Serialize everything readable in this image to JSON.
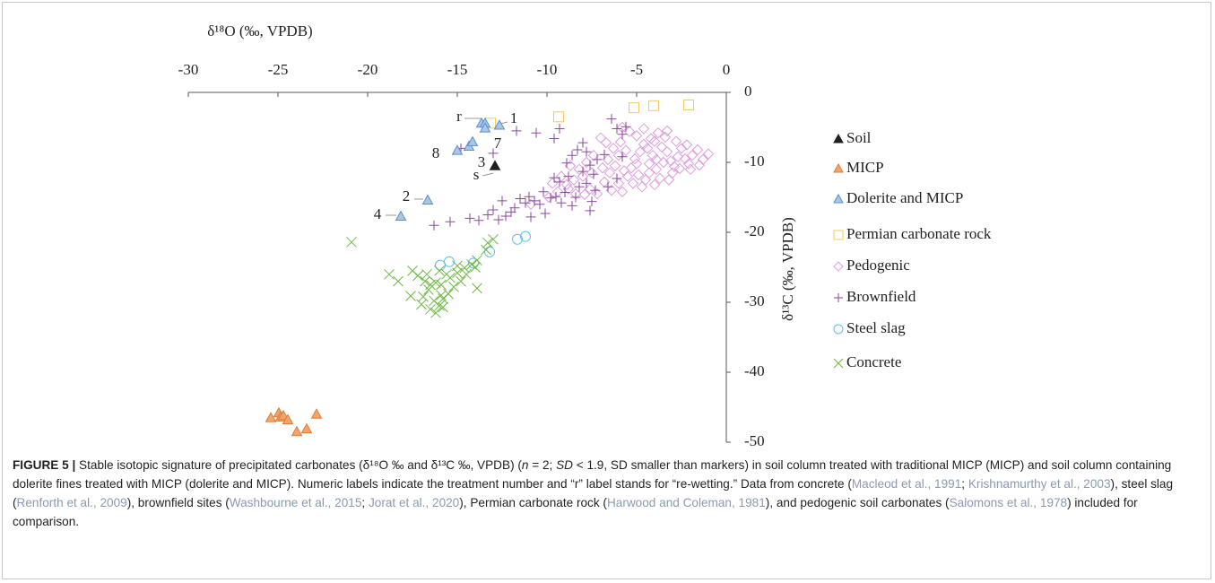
{
  "chart_data": {
    "type": "scatter",
    "x_label": "δ¹⁸O (‰, VPDB)",
    "y_label": "δ¹³C (‰, VPDB)",
    "xlim": [
      -30,
      0
    ],
    "xticks": [
      -30,
      -25,
      -20,
      -15,
      -10,
      -5,
      0
    ],
    "ylim": [
      -50,
      0
    ],
    "yticks": [
      0,
      -10,
      -20,
      -30,
      -40,
      -50
    ],
    "annotations": [
      "r",
      "1",
      "7",
      "8",
      "3",
      "2",
      "s",
      "4"
    ],
    "series": [
      {
        "name": "Soil",
        "marker": "triangle",
        "color": "#231f20",
        "fill": "#231f20",
        "x": [
          -12.9
        ],
        "y": [
          -10.5
        ]
      },
      {
        "name": "MICP",
        "marker": "triangle",
        "color": "#e07b39",
        "fill": "#f4a46a",
        "x": [
          -25.4,
          -24.95,
          -24.85,
          -24.7,
          -24.45,
          -23.95,
          -23.4,
          -22.85
        ],
        "y": [
          -46.5,
          -45.8,
          -46.4,
          -46.2,
          -46.8,
          -48.5,
          -48.1,
          -46.0
        ]
      },
      {
        "name": "Dolerite and MICP",
        "marker": "triangle",
        "color": "#5b8fcc",
        "fill": "#a9c6e8",
        "x": [
          -13.65,
          -13.45,
          -12.65,
          -13.45,
          -15.0,
          -14.35,
          -14.15,
          -16.65,
          -18.15
        ],
        "y": [
          -4.4,
          -4.4,
          -4.7,
          -5.1,
          -8.3,
          -7.7,
          -7.05,
          -15.4,
          -17.7
        ]
      },
      {
        "name": "Permian carbonate rock",
        "marker": "square",
        "color": "#f5c862",
        "fill": null,
        "x": [
          -13.15,
          -9.35,
          -5.15,
          -4.05,
          -2.1
        ],
        "y": [
          -4.4,
          -3.5,
          -2.2,
          -1.9,
          -1.8
        ]
      },
      {
        "name": "Pedogenic",
        "marker": "diamond",
        "color": "#dd9ddd",
        "fill": null,
        "x": [
          -10.9,
          -9.9,
          -9.4,
          -8.9,
          -8.5,
          -8.0,
          -7.6,
          -7.2,
          -6.8,
          -6.5,
          -6.2,
          -6.0,
          -5.8,
          -5.5,
          -5.3,
          -5.1,
          -4.9,
          -4.7,
          -4.5,
          -4.3,
          -4.1,
          -3.9,
          -3.7,
          -3.5,
          -3.3,
          -3.1,
          -2.9,
          -2.7,
          -2.5,
          -2.3,
          -2.1,
          -1.9,
          -1.6,
          -1.3,
          -1.0,
          -2.2,
          -2.8,
          -3.4,
          -3.8,
          -4.2,
          -4.6,
          -5.0,
          -5.4,
          -5.9,
          -6.3,
          -6.7,
          -7.0,
          -7.4,
          -7.8,
          -8.2,
          -8.7,
          -9.2,
          -6.9,
          -5.7,
          -4.8,
          -4.4,
          -3.6,
          -3.0,
          -2.6,
          -5.2,
          -4.0,
          -6.4,
          -7.9,
          -8.8,
          -9.7,
          -6.0,
          -5.6,
          -4.3,
          -3.2,
          -2.0,
          -1.5,
          -3.9,
          -5.0,
          -6.6,
          -7.5,
          -8.4,
          -4.6,
          -3.3,
          -5.8,
          -4.0
        ],
        "y": [
          -16.0,
          -15.0,
          -14.2,
          -13.2,
          -12.5,
          -12.0,
          -13.8,
          -14.5,
          -12.8,
          -11.5,
          -10.5,
          -13.0,
          -14.2,
          -12.0,
          -10.8,
          -9.5,
          -11.8,
          -13.5,
          -12.5,
          -10.2,
          -9.0,
          -11.0,
          -12.3,
          -10.0,
          -8.5,
          -9.8,
          -10.6,
          -9.2,
          -8.0,
          -9.5,
          -10.2,
          -9.0,
          -8.2,
          -9.6,
          -8.8,
          -7.5,
          -7.0,
          -6.4,
          -5.8,
          -6.6,
          -7.4,
          -6.2,
          -5.6,
          -7.1,
          -8.0,
          -7.2,
          -6.5,
          -9.0,
          -10.0,
          -11.0,
          -10.5,
          -12.0,
          -10.8,
          -11.2,
          -8.5,
          -8.0,
          -7.8,
          -11.5,
          -10.9,
          -13.0,
          -13.2,
          -14.0,
          -14.6,
          -13.8,
          -13.0,
          -9.0,
          -8.3,
          -11.5,
          -12.5,
          -11.0,
          -10.4,
          -9.6,
          -10.2,
          -9.6,
          -11.5,
          -14.5,
          -5.2,
          -5.5,
          -5.0,
          -7.0
        ]
      },
      {
        "name": "Brownfield",
        "marker": "plus",
        "color": "#8a4a9e",
        "fill": null,
        "x": [
          -16.3,
          -15.4,
          -14.3,
          -13.8,
          -13.3,
          -13.0,
          -12.7,
          -12.3,
          -12.0,
          -11.8,
          -11.5,
          -11.2,
          -11.0,
          -10.7,
          -10.4,
          -10.1,
          -9.8,
          -9.6,
          -9.3,
          -9.0,
          -8.8,
          -8.6,
          -8.4,
          -8.2,
          -8.0,
          -7.8,
          -7.6,
          -7.5,
          -7.3,
          -9.2,
          -8.9,
          -8.6,
          -8.3,
          -8.0,
          -7.8,
          -7.6,
          -7.4,
          -7.2,
          -6.8,
          -9.6,
          -9.3,
          -10.6,
          -11.7,
          -13.0,
          -6.4,
          -6.1,
          -5.8,
          -5.6,
          -5.8,
          -6.1,
          -6.6,
          -10.2,
          -9.5,
          -10.9,
          -12.5,
          -14.8
        ],
        "y": [
          -19.0,
          -18.5,
          -18.0,
          -18.3,
          -17.5,
          -16.8,
          -18.2,
          -17.7,
          -17.1,
          -16.5,
          -15.2,
          -15.8,
          -14.9,
          -15.5,
          -16.0,
          -17.3,
          -15.1,
          -12.2,
          -12.8,
          -14.3,
          -12.0,
          -16.2,
          -15.0,
          -13.5,
          -11.3,
          -13.0,
          -16.9,
          -15.6,
          -14.0,
          -15.8,
          -10.1,
          -9.0,
          -8.2,
          -7.2,
          -8.5,
          -10.4,
          -11.7,
          -9.6,
          -8.9,
          -6.6,
          -5.2,
          -5.8,
          -5.5,
          -8.7,
          -3.8,
          -5.2,
          -6.0,
          -4.9,
          -9.2,
          -12.3,
          -13.5,
          -14.2,
          -14.9,
          -17.8,
          -15.5,
          -8.0
        ]
      },
      {
        "name": "Steel slag",
        "marker": "circle",
        "color": "#5bc0e8",
        "fill": null,
        "x": [
          -15.95,
          -15.45,
          -14.1,
          -13.2,
          -11.65,
          -11.2
        ],
        "y": [
          -24.7,
          -24.2,
          -24.4,
          -22.8,
          -21.0,
          -20.6
        ]
      },
      {
        "name": "Concrete",
        "marker": "x",
        "color": "#6cb843",
        "fill": null,
        "x": [
          -20.9,
          -17.6,
          -17.0,
          -16.5,
          -16.2,
          -16.0,
          -15.8,
          -15.5,
          -15.9,
          -15.4,
          -15.0,
          -14.6,
          -14.2,
          -13.9,
          -13.4,
          -13.3,
          -13.0,
          -13.9,
          -14.8,
          -15.6,
          -16.2,
          -16.6,
          -16.9,
          -16.3,
          -15.8,
          -18.8,
          -18.3,
          -17.2,
          -16.7,
          -16.5,
          -15.2,
          -14.5,
          -14.0,
          -15.0,
          -16.0,
          -17.5,
          -16.8,
          -15.9
        ],
        "y": [
          -21.4,
          -29.1,
          -30.3,
          -31.0,
          -31.5,
          -30.5,
          -29.5,
          -28.8,
          -27.5,
          -26.5,
          -25.8,
          -25.1,
          -24.6,
          -24.0,
          -22.5,
          -21.5,
          -21.0,
          -28.0,
          -27.0,
          -26.0,
          -27.2,
          -28.2,
          -29.2,
          -29.8,
          -30.7,
          -26.0,
          -27.0,
          -26.2,
          -26.0,
          -27.5,
          -27.8,
          -26.0,
          -25.0,
          -24.8,
          -25.5,
          -25.5,
          -27.0,
          -29.0
        ]
      }
    ]
  },
  "caption": [
    {
      "text": "FIGURE 5 |",
      "style": "bold"
    },
    {
      "text": " Stable isotopic signature of precipitated carbonates (δ¹⁸O ‰ and δ¹³C ‰, VPDB) (",
      "style": "plain"
    },
    {
      "text": "n",
      "style": "italic"
    },
    {
      "text": " = 2; ",
      "style": "plain"
    },
    {
      "text": "SD",
      "style": "italic"
    },
    {
      "text": " < 1.9, SD smaller than markers) in soil column treated with traditional MICP (MICP) and soil column containing dolerite fines treated with MICP (dolerite and MICP). Numeric labels indicate the treatment number and “r” label stands for “re-wetting.” Data from concrete (",
      "style": "plain"
    },
    {
      "text": "Macleod et al., 1991",
      "style": "cite"
    },
    {
      "text": "; ",
      "style": "plain"
    },
    {
      "text": "Krishnamurthy et al., 2003",
      "style": "cite"
    },
    {
      "text": "), steel slag (",
      "style": "plain"
    },
    {
      "text": "Renforth et al., 2009",
      "style": "cite"
    },
    {
      "text": "), brownfield sites (",
      "style": "plain"
    },
    {
      "text": "Washbourne et al., 2015",
      "style": "cite"
    },
    {
      "text": "; ",
      "style": "plain"
    },
    {
      "text": "Jorat et al., 2020",
      "style": "cite"
    },
    {
      "text": "), Permian carbonate rock (",
      "style": "plain"
    },
    {
      "text": "Harwood and Coleman, 1981",
      "style": "cite"
    },
    {
      "text": "), and pedogenic soil carbonates (",
      "style": "plain"
    },
    {
      "text": "Salomons et al., 1978",
      "style": "cite"
    },
    {
      "text": ") included for comparison.",
      "style": "plain"
    }
  ]
}
